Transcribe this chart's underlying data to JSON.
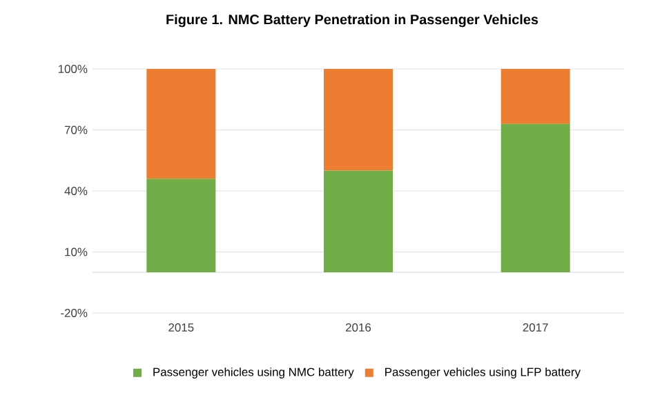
{
  "chart_data": {
    "type": "bar",
    "title": "Figure 1. NMC Battery Penetration in Passenger Vehicles",
    "categories": [
      "2015",
      "2016",
      "2017"
    ],
    "stacked": true,
    "series": [
      {
        "name": "Passenger vehicles using NMC battery",
        "color": "#70ad47",
        "values": [
          46,
          50,
          73
        ]
      },
      {
        "name": "Passenger vehicles using LFP battery",
        "color": "#ed7d31",
        "values": [
          54,
          50,
          27
        ]
      }
    ],
    "ylim": [
      -20,
      100
    ],
    "yticks": [
      {
        "value": -20,
        "label": "-20%"
      },
      {
        "value": 10,
        "label": "10%"
      },
      {
        "value": 40,
        "label": "40%"
      },
      {
        "value": 70,
        "label": "70%"
      },
      {
        "value": 100,
        "label": "100%"
      }
    ],
    "grid": "y",
    "legend": "bottom"
  }
}
